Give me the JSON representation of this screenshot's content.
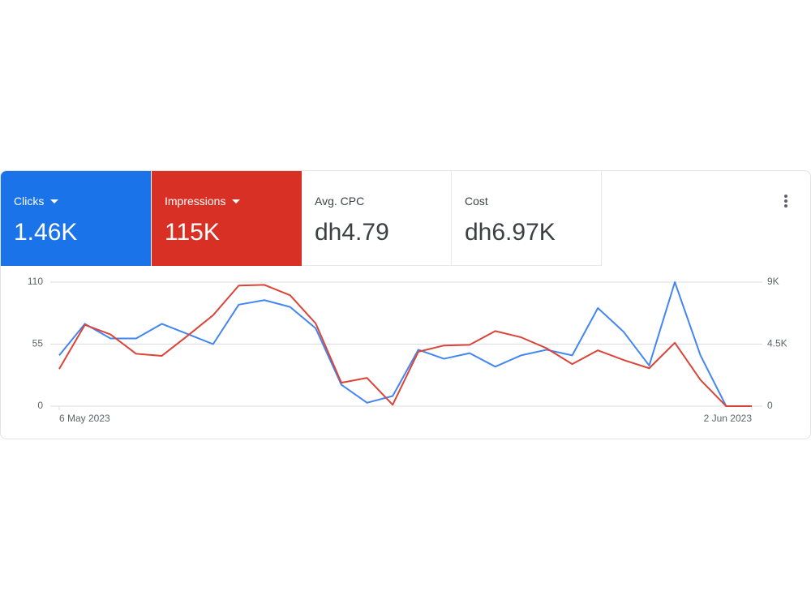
{
  "cards": [
    {
      "label": "Clicks",
      "value": "1.46K"
    },
    {
      "label": "Impressions",
      "value": "115K"
    },
    {
      "label": "Avg. CPC",
      "value": "dh4.79"
    },
    {
      "label": "Cost",
      "value": "dh6.97K"
    }
  ],
  "chart_data": {
    "type": "line",
    "categories": [
      "6 May 2023",
      null,
      null,
      null,
      null,
      null,
      null,
      null,
      null,
      null,
      null,
      null,
      null,
      null,
      null,
      null,
      null,
      null,
      null,
      null,
      null,
      null,
      null,
      null,
      null,
      null,
      null,
      "2 Jun 2023"
    ],
    "series": [
      {
        "name": "Clicks",
        "color": "#4285f4",
        "values": [
          45,
          73,
          60,
          60,
          73,
          64,
          55,
          90,
          94,
          88,
          69,
          19,
          3,
          9,
          50,
          42,
          47,
          35,
          45,
          50,
          45,
          87,
          66,
          36,
          110,
          45,
          0,
          0
        ]
      },
      {
        "name": "Impressions",
        "color": "#db4437",
        "axis": "y2",
        "values": [
          2700,
          5900,
          5200,
          3800,
          3650,
          5100,
          6600,
          8750,
          8800,
          8050,
          6000,
          1700,
          2050,
          100,
          3950,
          4400,
          4450,
          5450,
          5000,
          4200,
          3050,
          4050,
          3350,
          2750,
          4600,
          1900,
          0,
          0
        ]
      }
    ],
    "ylim": [
      0,
      110
    ],
    "yticks": [
      0,
      55,
      110
    ],
    "y2lim": [
      0,
      9000
    ],
    "y2ticks": [
      {
        "value": 0,
        "label": "0"
      },
      {
        "value": 4500,
        "label": "4.5K"
      },
      {
        "value": 9000,
        "label": "9K"
      }
    ],
    "grid": true
  }
}
